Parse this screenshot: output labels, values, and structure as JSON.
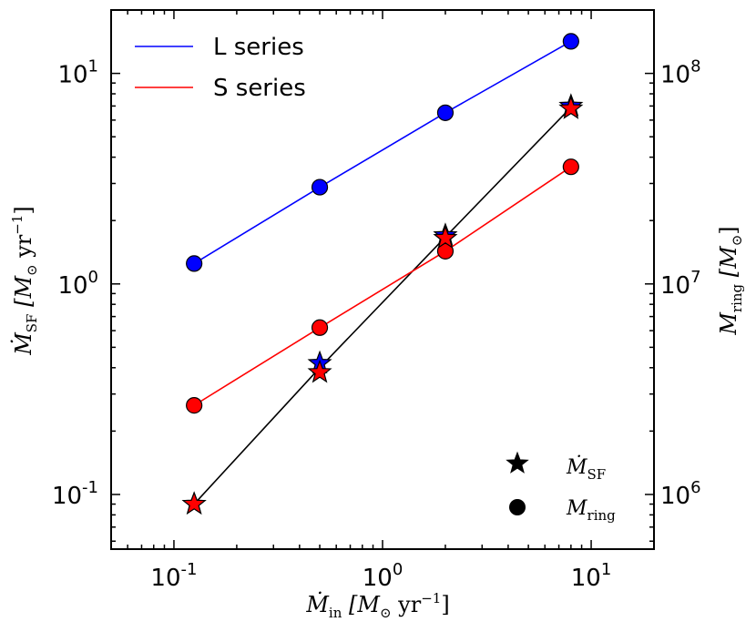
{
  "chart_data": {
    "type": "line",
    "scale": {
      "x": "log",
      "y_left": "log",
      "y_right": "log"
    },
    "xlabel": {
      "main": "Ṁ",
      "sub": "in",
      "unit_open": " [M",
      "unit_sun": "⊙",
      "unit_mid": " yr",
      "unit_exp": "−1",
      "unit_close": "]"
    },
    "ylabel_left": {
      "main": "Ṁ",
      "sub": "SF",
      "unit_open": " [M",
      "unit_sun": "⊙",
      "unit_mid": " yr",
      "unit_exp": "−1",
      "unit_close": "]"
    },
    "ylabel_right": {
      "main": "M",
      "sub": "ring",
      "unit_open": " [M",
      "unit_sun": "⊙",
      "unit_close": "]"
    },
    "xlim": [
      0.05,
      20
    ],
    "ylim_left": [
      0.055,
      20
    ],
    "ylim_right": [
      550000,
      200000000
    ],
    "x_ticks": [
      {
        "value": 0.1,
        "base": "10",
        "exp": "-1"
      },
      {
        "value": 1,
        "base": "10",
        "exp": "0"
      },
      {
        "value": 10,
        "base": "10",
        "exp": "1"
      }
    ],
    "y_left_ticks": [
      {
        "value": 0.1,
        "base": "10",
        "exp": "-1"
      },
      {
        "value": 1,
        "base": "10",
        "exp": "0"
      },
      {
        "value": 10,
        "base": "10",
        "exp": "1"
      }
    ],
    "y_right_ticks": [
      {
        "value": 1000000,
        "base": "10",
        "exp": "6"
      },
      {
        "value": 10000000,
        "base": "10",
        "exp": "7"
      },
      {
        "value": 100000000,
        "base": "10",
        "exp": "8"
      }
    ],
    "series": [
      {
        "name": "L series",
        "color": "#0000ff",
        "kind": "ring",
        "axis": "right",
        "x": [
          0.125,
          0.5,
          2,
          8
        ],
        "y": [
          12500000,
          28800000,
          65000000,
          142000000
        ]
      },
      {
        "name": "S series",
        "color": "#ff0000",
        "kind": "ring",
        "axis": "right",
        "x": [
          0.125,
          0.5,
          2,
          8
        ],
        "y": [
          2650000,
          6200000,
          14300000,
          36000000
        ]
      },
      {
        "name": "L series SFR",
        "color": "#0000ff",
        "kind": "sfr",
        "axis": "left",
        "x": [
          0.125,
          0.5,
          2,
          8
        ],
        "y": [
          0.09,
          0.42,
          1.7,
          7.0
        ]
      },
      {
        "name": "S series SFR",
        "color": "#ff0000",
        "kind": "sfr",
        "axis": "left",
        "x": [
          0.125,
          0.5,
          2,
          8
        ],
        "y": [
          0.09,
          0.38,
          1.65,
          6.8
        ]
      }
    ],
    "sfr_fit_line": {
      "color": "#000000",
      "x": [
        0.125,
        0.5,
        2,
        8
      ],
      "y": [
        0.09,
        0.4,
        1.67,
        6.9
      ]
    },
    "legend": {
      "lines": [
        {
          "label": "L series",
          "color": "#0000ff"
        },
        {
          "label": "S series",
          "color": "#ff0000"
        }
      ],
      "markers": [
        {
          "symbol": "star",
          "main": "Ṁ",
          "sub": "SF"
        },
        {
          "symbol": "circle",
          "main": "M",
          "sub": "ring"
        }
      ]
    }
  }
}
